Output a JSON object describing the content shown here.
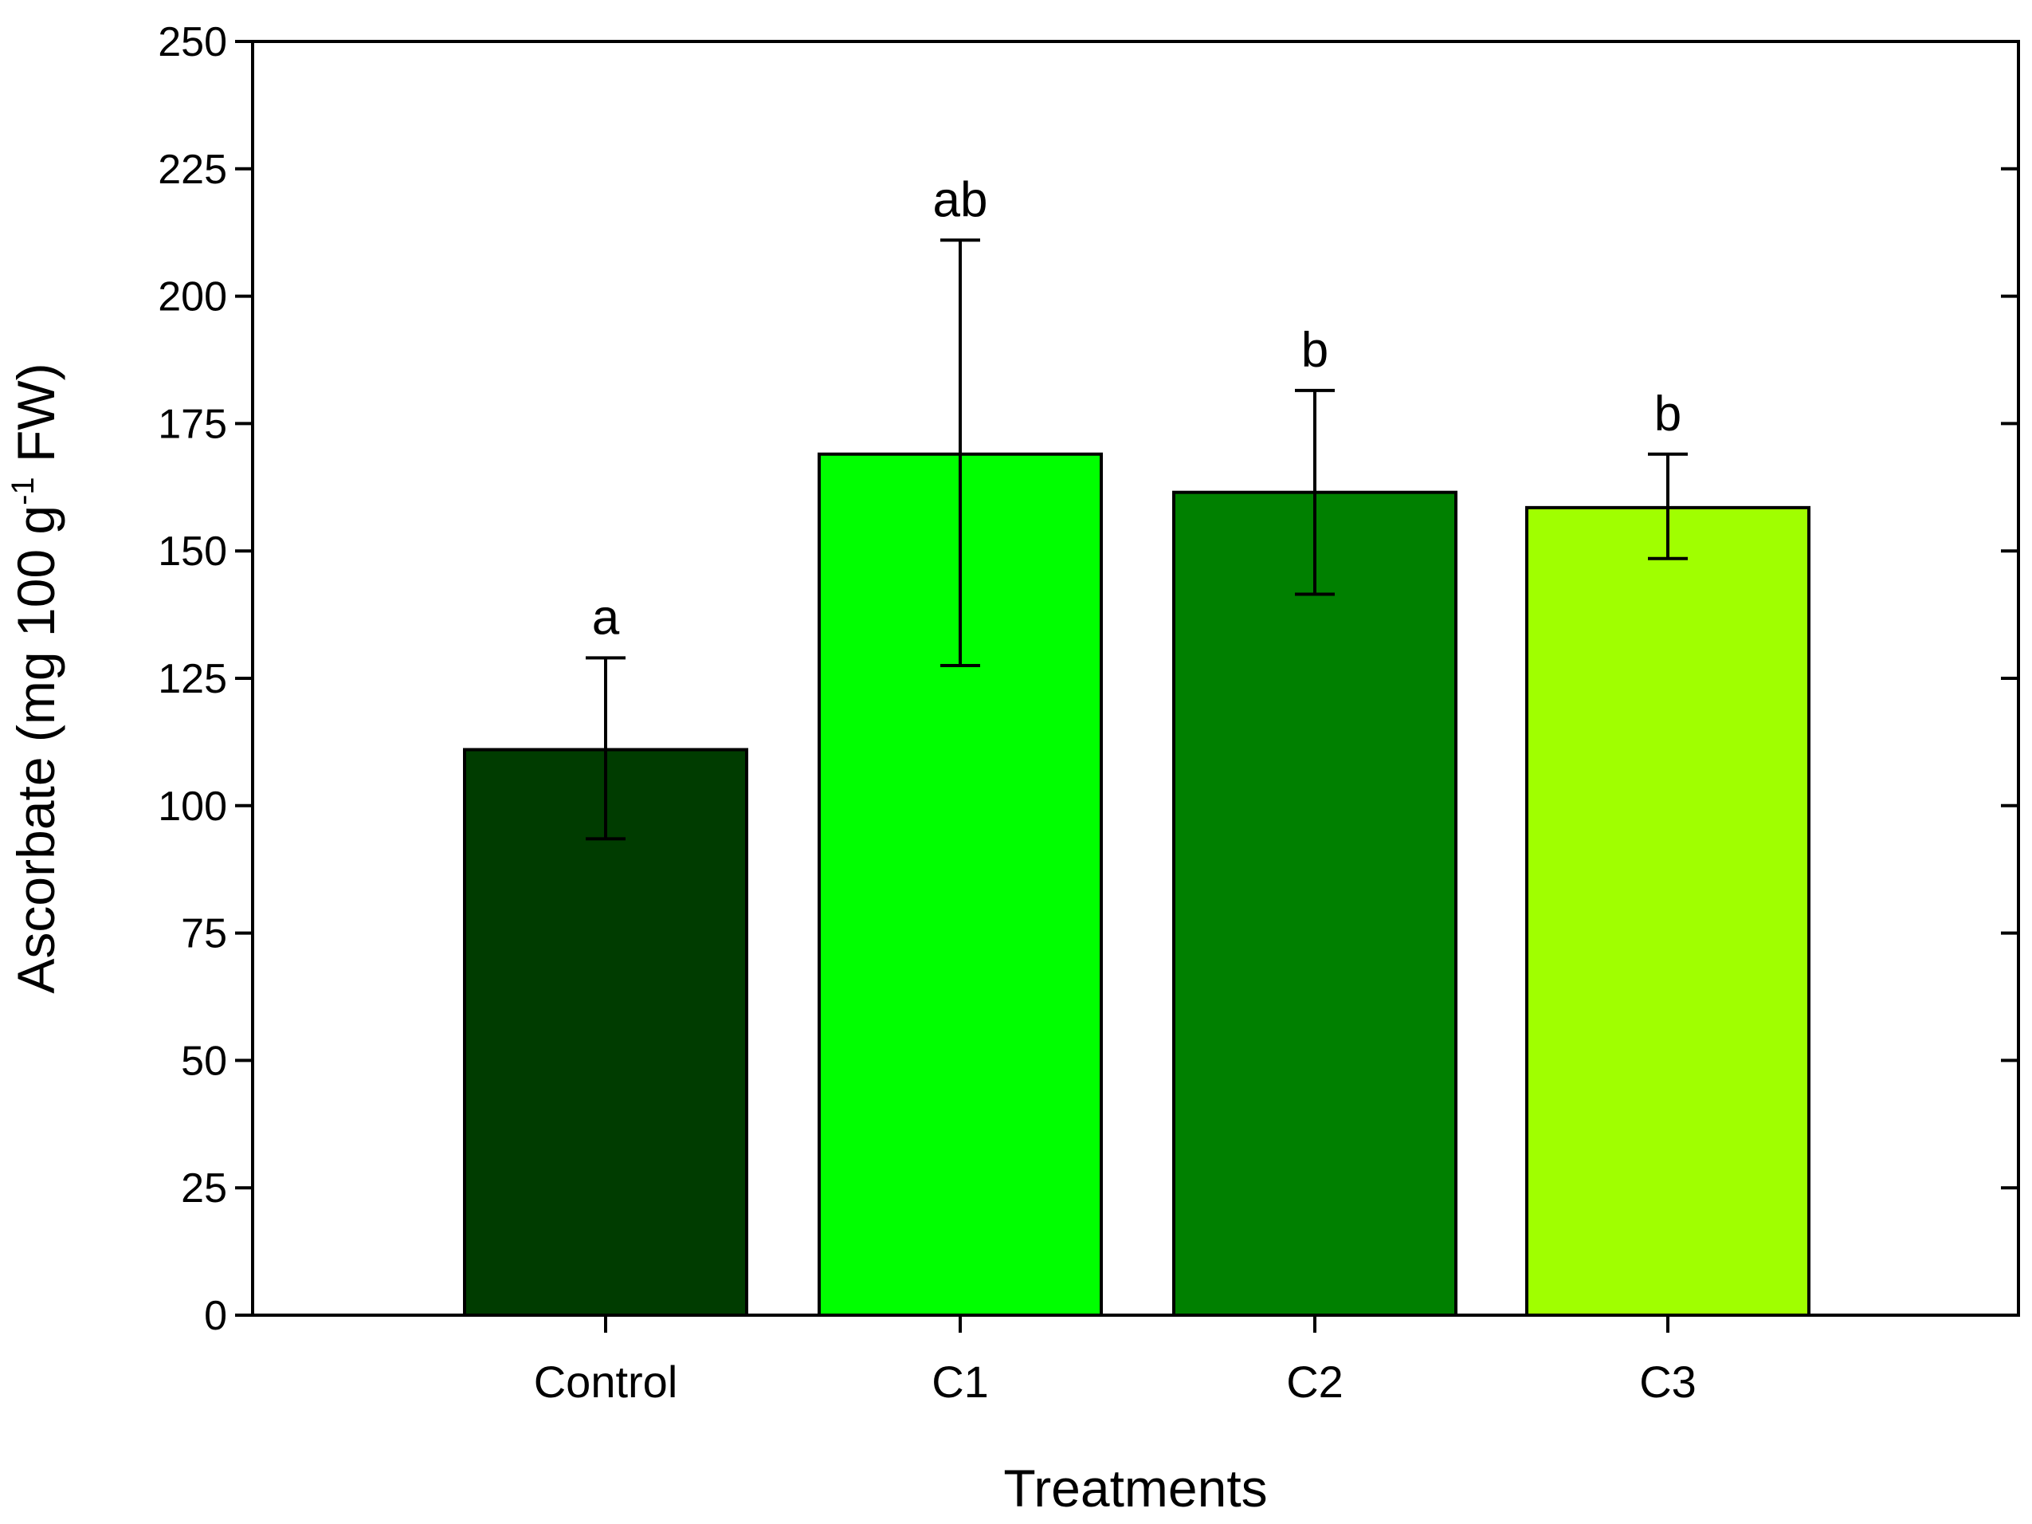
{
  "chart_data": {
    "type": "bar",
    "title": "",
    "xlabel": "Treatments",
    "ylabel": {
      "prefix": "Ascorbate (mg 100 g",
      "superscript": "-1",
      "suffix": " FW)"
    },
    "ylim": [
      0,
      250
    ],
    "yticks": [
      0,
      25,
      50,
      75,
      100,
      125,
      150,
      175,
      200,
      225,
      250
    ],
    "grid": false,
    "categories": [
      "Control",
      "C1",
      "C2",
      "C3"
    ],
    "values": [
      111,
      169,
      161.5,
      158.5
    ],
    "errors": [
      {
        "low": 93.5,
        "high": 129
      },
      {
        "low": 127.5,
        "high": 211
      },
      {
        "low": 141.5,
        "high": 181.5
      },
      {
        "low": 148.5,
        "high": 169
      }
    ],
    "significance_letters": [
      "a",
      "ab",
      "b",
      "b"
    ],
    "colors": [
      "#003c00",
      "#00ff00",
      "#008000",
      "#a0ff00"
    ]
  }
}
